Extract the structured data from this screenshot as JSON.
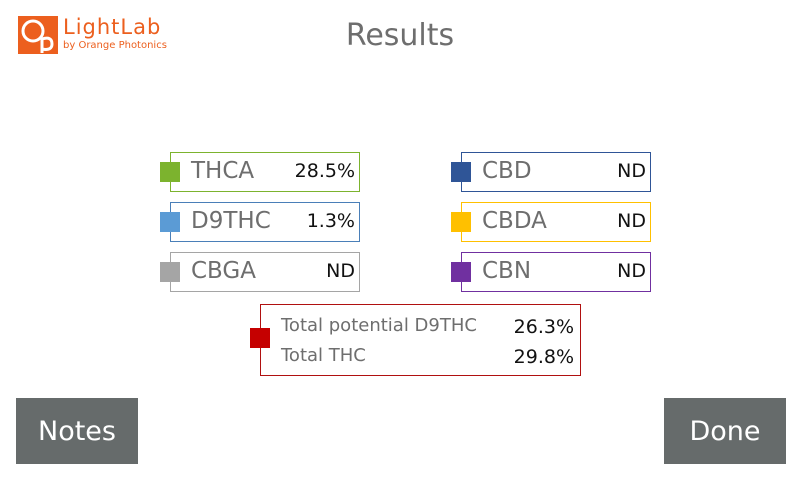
{
  "brand": {
    "logo_letters": "Op",
    "name": "LightLab",
    "tagline": "by Orange Photonics",
    "color": "#ec5f1e"
  },
  "header": {
    "title": "Results"
  },
  "results": [
    {
      "name": "THCA",
      "value": "28.5%",
      "color": "#7cb32e",
      "border": "#7cb32e"
    },
    {
      "name": "D9THC",
      "value": "1.3%",
      "color": "#5b9bd5",
      "border": "#4a7fb8"
    },
    {
      "name": "CBGA",
      "value": "ND",
      "color": "#a5a5a5",
      "border": "#a5a5a5"
    },
    {
      "name": "CBD",
      "value": "ND",
      "color": "#2f5597",
      "border": "#2f5597"
    },
    {
      "name": "CBDA",
      "value": "ND",
      "color": "#ffc000",
      "border": "#ffc000"
    },
    {
      "name": "CBN",
      "value": "ND",
      "color": "#7030a0",
      "border": "#7030a0"
    }
  ],
  "totals": {
    "color": "#c50000",
    "rows": [
      {
        "label": "Total potential D9THC",
        "value": "26.3%"
      },
      {
        "label": "Total THC",
        "value": "29.8%"
      }
    ]
  },
  "buttons": {
    "notes_label": "Notes",
    "done_label": "Done"
  }
}
